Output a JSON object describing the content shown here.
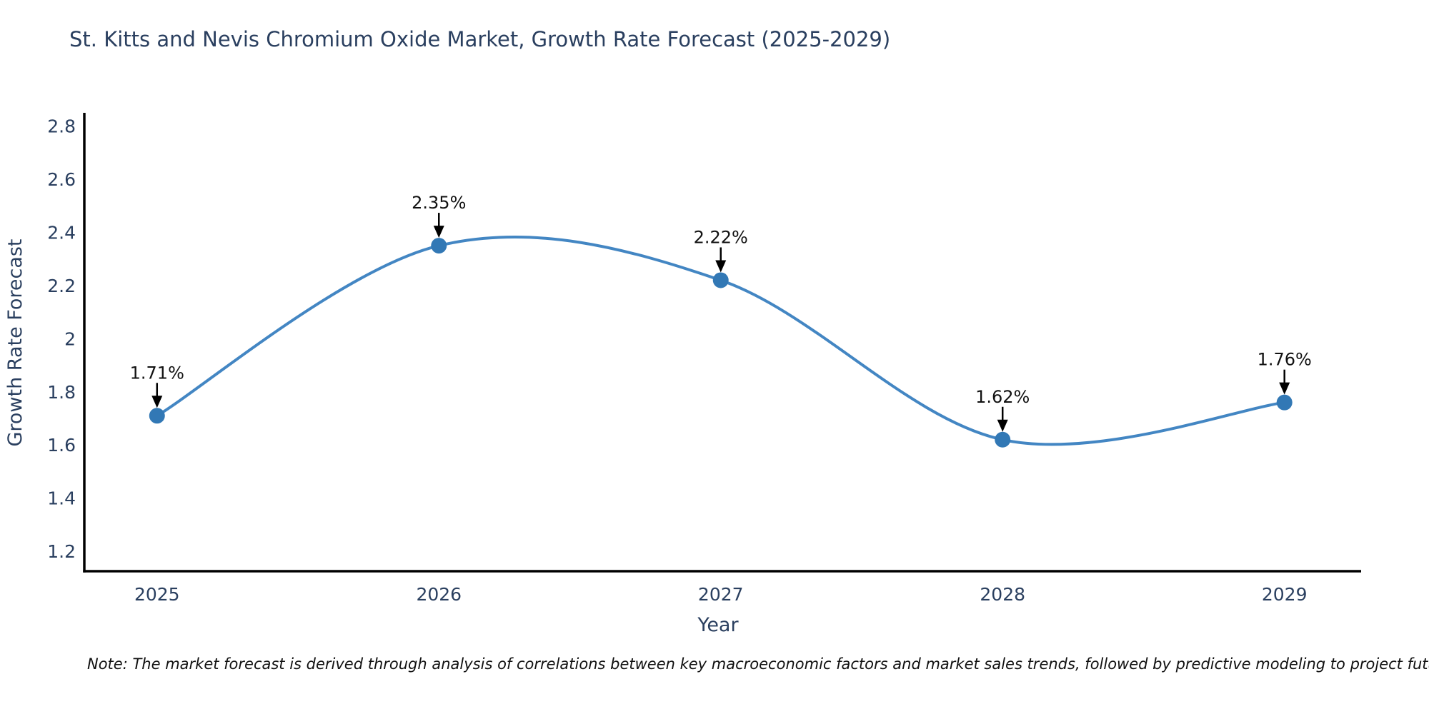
{
  "note": "Note: The market forecast is derived through analysis of correlations between key macroeconomic factors and market sales trends, followed by predictive modeling to project future sales",
  "colors": {
    "line": "#4386c3",
    "marker": "#3278b5",
    "axis": "#000000",
    "axis_text": "#2a3f5f",
    "annotation_text": "#111111",
    "arrow": "#000000"
  },
  "chart_data": {
    "type": "line",
    "title": "St. Kitts and Nevis Chromium Oxide Market, Growth Rate Forecast (2025-2029)",
    "xlabel": "Year",
    "ylabel": "Growth Rate Forecast",
    "x": [
      2025,
      2026,
      2027,
      2028,
      2029
    ],
    "values": [
      1.71,
      2.35,
      2.22,
      1.62,
      1.76
    ],
    "point_labels": [
      "1.71%",
      "2.35%",
      "2.22%",
      "1.62%",
      "1.76%"
    ],
    "xticks": [
      2025,
      2026,
      2027,
      2028,
      2029
    ],
    "xtick_labels": [
      "2025",
      "2026",
      "2027",
      "2028",
      "2029"
    ],
    "yticks": [
      1.2,
      1.4,
      1.6,
      1.8,
      2.0,
      2.2,
      2.4,
      2.6,
      2.8
    ],
    "ytick_labels": [
      "1.2",
      "1.4",
      "1.6",
      "1.8",
      "2",
      "2.2",
      "2.4",
      "2.6",
      "2.8"
    ],
    "xlim": [
      2024.742,
      2029.272
    ],
    "ylim": [
      1.125,
      2.85
    ],
    "grid": false,
    "legend": "none",
    "line_shape": "spline",
    "marker_size": 11
  }
}
